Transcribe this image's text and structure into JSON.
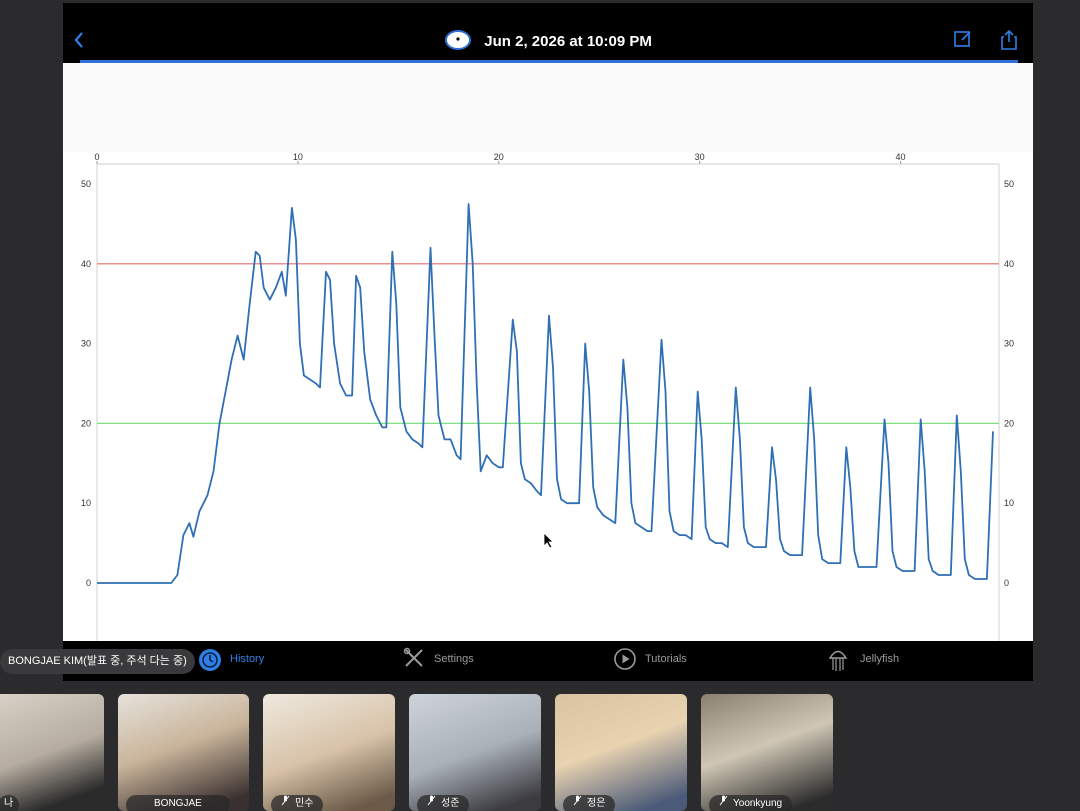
{
  "header": {
    "title": "Jun 2, 2026 at 10:09 PM",
    "back_icon": "chevron-left-icon",
    "edit_icon": "edit-icon",
    "share_icon": "share-icon",
    "accent": "#2f7fe6"
  },
  "chart_data": {
    "type": "line",
    "x_ticks": [
      "0",
      "10",
      "20",
      "30",
      "40"
    ],
    "y_ticks_left": [
      "50",
      "40",
      "30",
      "20",
      "10",
      "0"
    ],
    "y_ticks_right": [
      "50",
      "40",
      "30",
      "20",
      "10",
      "0"
    ],
    "xlim": [
      0,
      44.9
    ],
    "ylim": [
      -7,
      50
    ],
    "reference_lines": [
      {
        "y": 40,
        "color": "#e06b6b"
      },
      {
        "y": 20,
        "color": "#7ee07e"
      }
    ],
    "series": [
      {
        "color": "#2f6fb5",
        "points": [
          [
            0,
            0
          ],
          [
            1,
            0
          ],
          [
            2,
            0
          ],
          [
            3,
            0
          ],
          [
            3.7,
            0
          ],
          [
            4,
            1
          ],
          [
            4.3,
            6
          ],
          [
            4.6,
            7.5
          ],
          [
            4.8,
            5.8
          ],
          [
            5.1,
            9
          ],
          [
            5.5,
            11
          ],
          [
            5.8,
            14
          ],
          [
            6.1,
            20
          ],
          [
            6.4,
            24
          ],
          [
            6.7,
            28
          ],
          [
            7,
            31
          ],
          [
            7.3,
            28
          ],
          [
            7.6,
            35
          ],
          [
            7.9,
            41.5
          ],
          [
            8.1,
            41
          ],
          [
            8.3,
            37
          ],
          [
            8.6,
            35.5
          ],
          [
            8.9,
            37
          ],
          [
            9.2,
            39
          ],
          [
            9.4,
            36
          ],
          [
            9.7,
            47
          ],
          [
            9.9,
            43
          ],
          [
            10.1,
            30
          ],
          [
            10.3,
            26
          ],
          [
            10.6,
            25.5
          ],
          [
            10.9,
            25
          ],
          [
            11.1,
            24.5
          ],
          [
            11.4,
            39
          ],
          [
            11.6,
            38
          ],
          [
            11.8,
            30
          ],
          [
            12.1,
            25
          ],
          [
            12.4,
            23.5
          ],
          [
            12.7,
            23.5
          ],
          [
            12.9,
            38.5
          ],
          [
            13.1,
            37
          ],
          [
            13.3,
            29
          ],
          [
            13.6,
            23
          ],
          [
            13.9,
            21
          ],
          [
            14.2,
            19.5
          ],
          [
            14.4,
            19.5
          ],
          [
            14.7,
            41.5
          ],
          [
            14.9,
            35
          ],
          [
            15.1,
            22
          ],
          [
            15.4,
            19
          ],
          [
            15.7,
            18
          ],
          [
            16,
            17.5
          ],
          [
            16.2,
            17
          ],
          [
            16.6,
            42
          ],
          [
            16.8,
            31
          ],
          [
            17,
            21
          ],
          [
            17.3,
            18
          ],
          [
            17.6,
            18
          ],
          [
            17.9,
            16
          ],
          [
            18.1,
            15.5
          ],
          [
            18.5,
            47.5
          ],
          [
            18.7,
            40
          ],
          [
            18.9,
            25
          ],
          [
            19.1,
            14
          ],
          [
            19.4,
            16
          ],
          [
            19.7,
            15
          ],
          [
            20,
            14.5
          ],
          [
            20.2,
            14.5
          ],
          [
            20.7,
            33
          ],
          [
            20.9,
            29
          ],
          [
            21.1,
            15
          ],
          [
            21.3,
            13
          ],
          [
            21.6,
            12.5
          ],
          [
            21.9,
            11.5
          ],
          [
            22.1,
            11
          ],
          [
            22.5,
            33.5
          ],
          [
            22.7,
            27
          ],
          [
            22.9,
            13
          ],
          [
            23.1,
            10.5
          ],
          [
            23.4,
            10
          ],
          [
            23.7,
            10
          ],
          [
            24,
            10
          ],
          [
            24.3,
            30
          ],
          [
            24.5,
            24
          ],
          [
            24.7,
            12
          ],
          [
            24.9,
            9.5
          ],
          [
            25.2,
            8.5
          ],
          [
            25.5,
            8
          ],
          [
            25.8,
            7.5
          ],
          [
            26.2,
            28
          ],
          [
            26.4,
            22
          ],
          [
            26.6,
            10
          ],
          [
            26.8,
            7.5
          ],
          [
            27.1,
            7
          ],
          [
            27.4,
            6.5
          ],
          [
            27.6,
            6.5
          ],
          [
            28.1,
            30.5
          ],
          [
            28.3,
            24
          ],
          [
            28.5,
            9
          ],
          [
            28.7,
            6.5
          ],
          [
            29,
            6
          ],
          [
            29.3,
            6
          ],
          [
            29.6,
            5.5
          ],
          [
            29.9,
            24
          ],
          [
            30.1,
            18
          ],
          [
            30.3,
            7
          ],
          [
            30.5,
            5.5
          ],
          [
            30.8,
            5
          ],
          [
            31.1,
            5
          ],
          [
            31.4,
            4.5
          ],
          [
            31.8,
            24.5
          ],
          [
            32,
            18
          ],
          [
            32.2,
            7
          ],
          [
            32.4,
            5
          ],
          [
            32.7,
            4.5
          ],
          [
            33,
            4.5
          ],
          [
            33.3,
            4.5
          ],
          [
            33.6,
            17
          ],
          [
            33.8,
            13
          ],
          [
            34,
            5.5
          ],
          [
            34.2,
            4
          ],
          [
            34.5,
            3.5
          ],
          [
            34.8,
            3.5
          ],
          [
            35.1,
            3.5
          ],
          [
            35.5,
            24.5
          ],
          [
            35.7,
            18
          ],
          [
            35.9,
            6
          ],
          [
            36.1,
            3
          ],
          [
            36.4,
            2.5
          ],
          [
            36.7,
            2.5
          ],
          [
            37,
            2.5
          ],
          [
            37.3,
            17
          ],
          [
            37.5,
            12
          ],
          [
            37.7,
            4
          ],
          [
            37.9,
            2
          ],
          [
            38.2,
            2
          ],
          [
            38.5,
            2
          ],
          [
            38.8,
            2
          ],
          [
            39.2,
            20.5
          ],
          [
            39.4,
            15
          ],
          [
            39.6,
            4
          ],
          [
            39.8,
            2
          ],
          [
            40.1,
            1.5
          ],
          [
            40.4,
            1.5
          ],
          [
            40.7,
            1.5
          ],
          [
            41,
            20.5
          ],
          [
            41.2,
            14
          ],
          [
            41.4,
            3
          ],
          [
            41.6,
            1.5
          ],
          [
            41.9,
            1
          ],
          [
            42.2,
            1
          ],
          [
            42.5,
            1
          ],
          [
            42.8,
            21
          ],
          [
            43,
            14
          ],
          [
            43.2,
            3
          ],
          [
            43.4,
            1
          ],
          [
            43.7,
            0.5
          ],
          [
            44,
            0.5
          ],
          [
            44.3,
            0.5
          ],
          [
            44.6,
            19
          ]
        ]
      }
    ]
  },
  "tabbar": {
    "tabs": [
      {
        "label": "History",
        "icon": "clock-icon",
        "active": true
      },
      {
        "label": "Settings",
        "icon": "tools-icon",
        "active": false
      },
      {
        "label": "Tutorials",
        "icon": "play-icon",
        "active": false
      },
      {
        "label": "Jellyfish",
        "icon": "jellyfish-icon",
        "active": false
      }
    ]
  },
  "meeting": {
    "presenter_label": "BONGJAE KIM(발표 중, 주석 다는 중)",
    "participants": [
      {
        "name": "나",
        "muted": false
      },
      {
        "name": "BONGJAE",
        "muted": false
      },
      {
        "name": "민수",
        "muted": true
      },
      {
        "name": "성준",
        "muted": true
      },
      {
        "name": "정은",
        "muted": true
      },
      {
        "name": "Yoonkyung",
        "muted": true
      }
    ]
  }
}
